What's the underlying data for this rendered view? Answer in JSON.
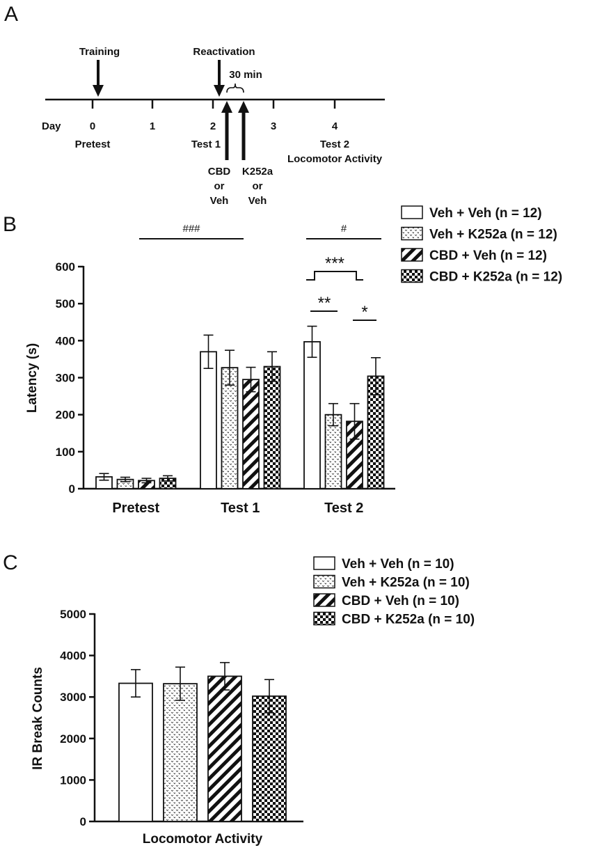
{
  "colors": {
    "ink": "#111111",
    "background": "#ffffff",
    "bar_fill": "#ffffff"
  },
  "timeline": {
    "panel_label": "A",
    "events": {
      "training": "Training",
      "reactivation": "Reactivation",
      "interval": "30 min"
    },
    "day_label": "Day",
    "ticks": [
      "0",
      "1",
      "2",
      "3",
      "4"
    ],
    "sessions": {
      "pretest": "Pretest",
      "test1": "Test 1",
      "test2": "Test 2",
      "locomotor": "Locomotor Activity"
    },
    "injection1": [
      "CBD",
      "or",
      "Veh"
    ],
    "injection2": [
      "K252a",
      "or",
      "Veh"
    ]
  },
  "chart_data": [
    {
      "panel_label": "B",
      "type": "bar",
      "ylabel": "Latency (s)",
      "ylim": [
        0,
        600
      ],
      "yticks": [
        "0",
        "100",
        "200",
        "300",
        "400",
        "500",
        "600"
      ],
      "categories": [
        "Pretest",
        "Test 1",
        "Test 2"
      ],
      "series": [
        {
          "name": "Veh + Veh (n = 12)",
          "pattern": "open",
          "values": [
            32,
            370,
            397
          ],
          "errors": [
            9,
            45,
            42
          ]
        },
        {
          "name": "Veh + K252a (n = 12)",
          "pattern": "dots",
          "values": [
            25,
            327,
            200
          ],
          "errors": [
            6,
            47,
            30
          ]
        },
        {
          "name": "CBD + Veh (n = 12)",
          "pattern": "stripes",
          "values": [
            22,
            295,
            182
          ],
          "errors": [
            6,
            33,
            48
          ]
        },
        {
          "name": "CBD + K252a (n = 12)",
          "pattern": "checker",
          "values": [
            28,
            330,
            304
          ],
          "errors": [
            7,
            40,
            50
          ]
        }
      ],
      "annotations": {
        "hash_left": "###",
        "hash_right": "#",
        "triple_star": "***",
        "double_star": "**",
        "single_star": "*"
      },
      "legend_position": "top-right",
      "grid": false
    },
    {
      "panel_label": "C",
      "type": "bar",
      "ylabel": "IR Break Counts",
      "xlabel": "Locomotor Activity",
      "ylim": [
        0,
        5000
      ],
      "yticks": [
        "0",
        "1000",
        "2000",
        "3000",
        "4000",
        "5000"
      ],
      "series": [
        {
          "name": "Veh + Veh (n = 10)",
          "pattern": "open",
          "value": 3330,
          "error": 330
        },
        {
          "name": "Veh + K252a (n = 10)",
          "pattern": "dots",
          "value": 3320,
          "error": 400
        },
        {
          "name": "CBD + Veh (n = 10)",
          "pattern": "stripes",
          "value": 3500,
          "error": 330
        },
        {
          "name": "CBD + K252a (n = 10)",
          "pattern": "checker",
          "value": 3020,
          "error": 400
        }
      ],
      "legend_position": "top-right",
      "grid": false
    }
  ]
}
